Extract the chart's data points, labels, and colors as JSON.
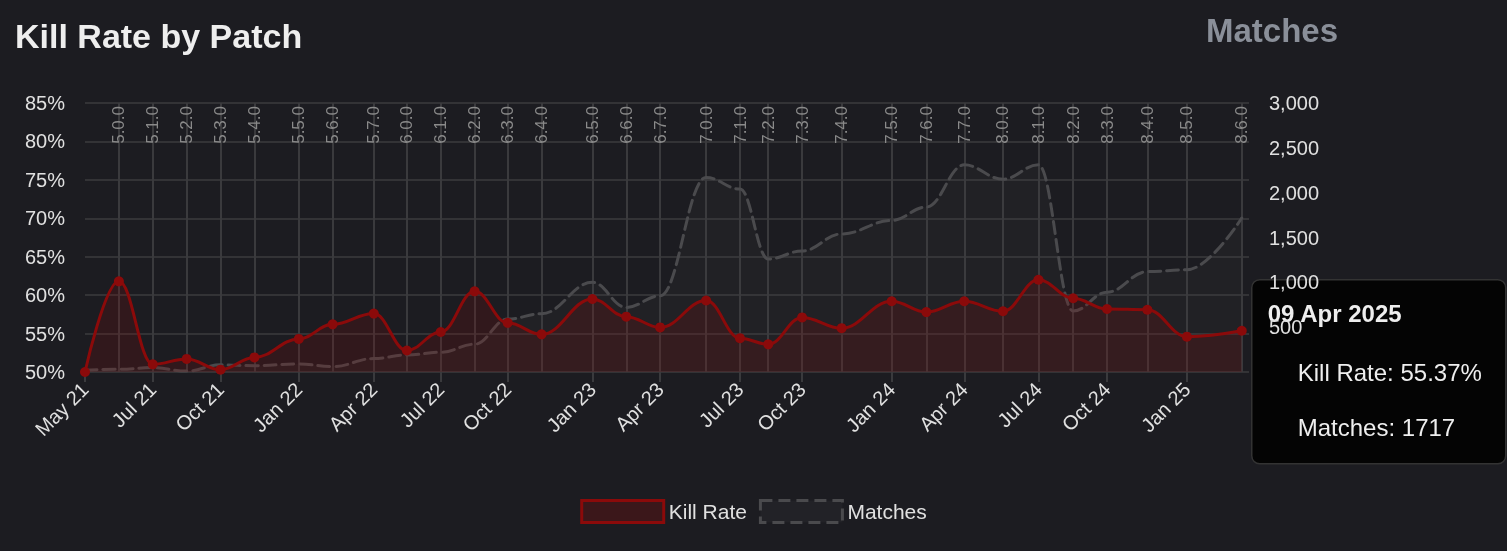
{
  "chart_data": {
    "type": "area",
    "title": "Kill Rate by Patch",
    "y2label": "Matches",
    "x": [
      "2021-05-06",
      "2021-06-17",
      "2021-07-29",
      "2021-09-09",
      "2021-10-21",
      "2021-12-02",
      "2022-01-26",
      "2022-03-09",
      "2022-04-29",
      "2022-06-09",
      "2022-07-21",
      "2022-09-01",
      "2022-10-12",
      "2022-11-23",
      "2023-01-25",
      "2023-03-08",
      "2023-04-19",
      "2023-06-15",
      "2023-07-27",
      "2023-08-31",
      "2023-10-12",
      "2023-11-30",
      "2024-01-31",
      "2024-03-14",
      "2024-04-30",
      "2024-06-17",
      "2024-07-31",
      "2024-09-12",
      "2024-10-24",
      "2024-12-13",
      "2025-01-31",
      "2025-04-09"
    ],
    "series": [
      {
        "name": "Kill Rate",
        "color": "#8b0a0a",
        "marker": "circle",
        "line_style": "solid",
        "values": [
          50.0,
          61.8,
          51.0,
          51.7,
          50.3,
          51.9,
          54.3,
          56.2,
          57.6,
          52.8,
          55.2,
          60.5,
          56.4,
          54.9,
          59.5,
          57.2,
          55.8,
          59.3,
          54.4,
          53.6,
          57.1,
          55.7,
          59.2,
          57.8,
          59.2,
          57.9,
          62.0,
          59.6,
          58.2,
          58.1,
          54.6,
          55.37
        ]
      },
      {
        "name": "Matches",
        "color": "#4a4a4d",
        "axis": "y2",
        "marker": "none",
        "line_style": "dashed",
        "values": [
          20,
          30,
          50,
          10,
          80,
          70,
          90,
          60,
          150,
          190,
          220,
          310,
          590,
          650,
          1000,
          720,
          850,
          2170,
          2040,
          1260,
          1350,
          1540,
          1690,
          1840,
          2310,
          2150,
          2310,
          680,
          890,
          1120,
          1140,
          1717
        ]
      }
    ],
    "xlim": [
      "2021-05-06",
      "2025-04-18"
    ],
    "xticks": [
      {
        "value": "2021-05-06",
        "label": "May 21"
      },
      {
        "value": "2021-07-29",
        "label": "Jul 21"
      },
      {
        "value": "2021-10-21",
        "label": "Oct 21"
      },
      {
        "value": "2022-01-26",
        "label": "Jan 22"
      },
      {
        "value": "2022-04-29",
        "label": "Apr 22"
      },
      {
        "value": "2022-07-21",
        "label": "Jul 22"
      },
      {
        "value": "2022-10-12",
        "label": "Oct 22"
      },
      {
        "value": "2023-01-25",
        "label": "Jan 23"
      },
      {
        "value": "2023-04-19",
        "label": "Apr 23"
      },
      {
        "value": "2023-07-27",
        "label": "Jul 23"
      },
      {
        "value": "2023-10-12",
        "label": "Oct 23"
      },
      {
        "value": "2024-01-31",
        "label": "Jan 24"
      },
      {
        "value": "2024-04-30",
        "label": "Apr 24"
      },
      {
        "value": "2024-07-31",
        "label": "Jul 24"
      },
      {
        "value": "2024-10-24",
        "label": "Oct 24"
      },
      {
        "value": "2025-01-31",
        "label": "Jan 25"
      }
    ],
    "ylim": [
      50,
      85
    ],
    "yticks": [
      {
        "value": 50,
        "label": "50%"
      },
      {
        "value": 55,
        "label": "55%"
      },
      {
        "value": 60,
        "label": "60%"
      },
      {
        "value": 65,
        "label": "65%"
      },
      {
        "value": 70,
        "label": "70%"
      },
      {
        "value": 75,
        "label": "75%"
      },
      {
        "value": 80,
        "label": "80%"
      },
      {
        "value": 85,
        "label": "85%"
      }
    ],
    "y2lim": [
      0,
      3000
    ],
    "y2ticks": [
      {
        "value": 0,
        "label": null
      },
      {
        "value": 500,
        "label": "500"
      },
      {
        "value": 1000,
        "label": "1,000"
      },
      {
        "value": 1500,
        "label": "1,500"
      },
      {
        "value": 2000,
        "label": "2,000"
      },
      {
        "value": 2500,
        "label": "2,500"
      },
      {
        "value": 3000,
        "label": "3,000"
      }
    ],
    "ref_lines": [
      {
        "axis": "x",
        "value": "2021-06-17",
        "label": "5.0.0"
      },
      {
        "axis": "x",
        "value": "2021-07-29",
        "label": "5.1.0"
      },
      {
        "axis": "x",
        "value": "2021-09-09",
        "label": "5.2.0"
      },
      {
        "axis": "x",
        "value": "2021-10-21",
        "label": "5.3.0"
      },
      {
        "axis": "x",
        "value": "2021-12-02",
        "label": "5.4.0"
      },
      {
        "axis": "x",
        "value": "2022-01-26",
        "label": "5.5.0"
      },
      {
        "axis": "x",
        "value": "2022-03-09",
        "label": "5.6.0"
      },
      {
        "axis": "x",
        "value": "2022-04-29",
        "label": "5.7.0"
      },
      {
        "axis": "x",
        "value": "2022-06-09",
        "label": "6.0.0"
      },
      {
        "axis": "x",
        "value": "2022-07-21",
        "label": "6.1.0"
      },
      {
        "axis": "x",
        "value": "2022-09-01",
        "label": "6.2.0"
      },
      {
        "axis": "x",
        "value": "2022-10-12",
        "label": "6.3.0"
      },
      {
        "axis": "x",
        "value": "2022-11-23",
        "label": "6.4.0"
      },
      {
        "axis": "x",
        "value": "2023-01-25",
        "label": "6.5.0"
      },
      {
        "axis": "x",
        "value": "2023-03-08",
        "label": "6.6.0"
      },
      {
        "axis": "x",
        "value": "2023-04-19",
        "label": "6.7.0"
      },
      {
        "axis": "x",
        "value": "2023-06-15",
        "label": "7.0.0"
      },
      {
        "axis": "x",
        "value": "2023-07-27",
        "label": "7.1.0"
      },
      {
        "axis": "x",
        "value": "2023-08-31",
        "label": "7.2.0"
      },
      {
        "axis": "x",
        "value": "2023-10-12",
        "label": "7.3.0"
      },
      {
        "axis": "x",
        "value": "2023-11-30",
        "label": "7.4.0"
      },
      {
        "axis": "x",
        "value": "2024-01-31",
        "label": "7.5.0"
      },
      {
        "axis": "x",
        "value": "2024-03-14",
        "label": "7.6.0"
      },
      {
        "axis": "x",
        "value": "2024-04-30",
        "label": "7.7.0"
      },
      {
        "axis": "x",
        "value": "2024-06-17",
        "label": "8.0.0"
      },
      {
        "axis": "x",
        "value": "2024-07-31",
        "label": "8.1.0"
      },
      {
        "axis": "x",
        "value": "2024-09-12",
        "label": "8.2.0"
      },
      {
        "axis": "x",
        "value": "2024-10-24",
        "label": "8.3.0"
      },
      {
        "axis": "x",
        "value": "2024-12-13",
        "label": "8.4.0"
      },
      {
        "axis": "x",
        "value": "2025-01-31",
        "label": "8.5.0"
      },
      {
        "axis": "x",
        "value": "2025-04-09",
        "label": "8.6.0"
      }
    ],
    "annotations": [
      "09 Apr 2025",
      "Kill Rate: 55.37%",
      "Matches: 1717"
    ],
    "grid": "y",
    "legend": "bottom"
  }
}
